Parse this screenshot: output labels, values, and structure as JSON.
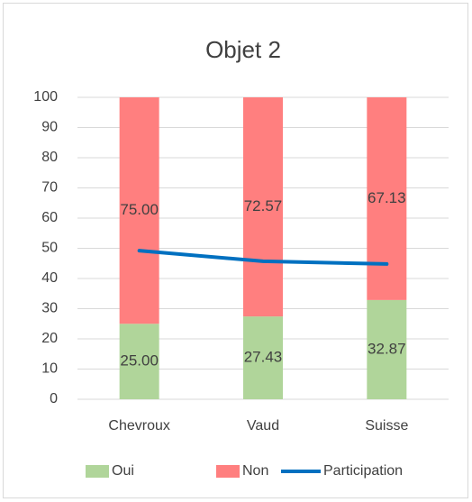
{
  "chart_data": {
    "type": "bar",
    "stacked": true,
    "title": "Objet 2",
    "categories": [
      "Chevroux",
      "Vaud",
      "Suisse"
    ],
    "series": [
      {
        "name": "Oui",
        "color": "#b0d59a",
        "values": [
          25,
          27.43,
          32.87
        ],
        "value_labels": [
          "25.00",
          "27.43",
          "32.87"
        ]
      },
      {
        "name": "Non",
        "color": "#ff7f7f",
        "values": [
          75,
          72.57,
          67.13
        ],
        "value_labels": [
          "75.00",
          "72.57",
          "67.13"
        ]
      },
      {
        "name": "Participation",
        "type": "line",
        "color": "#0070c0",
        "values": [
          49.2,
          45.7,
          44.8
        ]
      }
    ],
    "ylim": [
      0,
      100
    ],
    "yticks": [
      0,
      10,
      20,
      30,
      40,
      50,
      60,
      70,
      80,
      90,
      100
    ],
    "grid": true,
    "legend": "bottom"
  }
}
